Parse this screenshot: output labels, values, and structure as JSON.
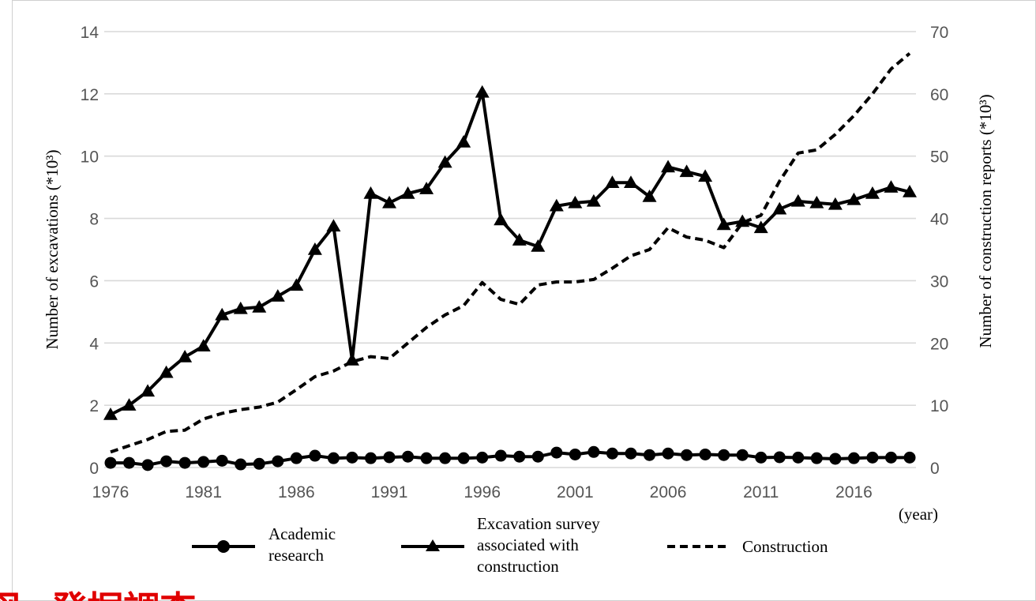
{
  "chart_data": {
    "type": "line",
    "x": [
      1976,
      1977,
      1978,
      1979,
      1980,
      1981,
      1982,
      1983,
      1984,
      1985,
      1986,
      1987,
      1988,
      1989,
      1990,
      1991,
      1992,
      1993,
      1994,
      1995,
      1996,
      1997,
      1998,
      1999,
      2000,
      2001,
      2002,
      2003,
      2004,
      2005,
      2006,
      2007,
      2008,
      2009,
      2010,
      2011,
      2012,
      2013,
      2014,
      2015,
      2016,
      2017,
      2018,
      2019
    ],
    "x_tick_labels": [
      "1976",
      "1981",
      "1986",
      "1991",
      "1996",
      "2001",
      "2006",
      "2011",
      "2016"
    ],
    "x_unit_label": "(year)",
    "ylabel_left": "Number of excavations (*10³)",
    "ylabel_right": "Number of construction reports (*10³)",
    "ylim_left": [
      0,
      14
    ],
    "ylim_right": [
      0,
      70
    ],
    "yticks_left": [
      "0",
      "2",
      "4",
      "6",
      "8",
      "10",
      "12",
      "14"
    ],
    "yticks_right": [
      "0",
      "10",
      "20",
      "30",
      "40",
      "50",
      "60",
      "70"
    ],
    "grid": true,
    "legend_position": "bottom",
    "series": [
      {
        "name": "Academic research",
        "axis": "left",
        "marker": "circle",
        "line_style": "solid",
        "values": [
          0.15,
          0.15,
          0.08,
          0.2,
          0.15,
          0.18,
          0.22,
          0.1,
          0.12,
          0.2,
          0.3,
          0.38,
          0.3,
          0.32,
          0.3,
          0.33,
          0.35,
          0.3,
          0.3,
          0.3,
          0.32,
          0.38,
          0.35,
          0.35,
          0.48,
          0.42,
          0.5,
          0.45,
          0.45,
          0.4,
          0.45,
          0.4,
          0.42,
          0.4,
          0.4,
          0.32,
          0.33,
          0.32,
          0.3,
          0.28,
          0.3,
          0.32,
          0.32,
          0.32
        ]
      },
      {
        "name": "Excavation survey associated with construction",
        "axis": "left",
        "marker": "triangle",
        "line_style": "solid",
        "values": [
          1.7,
          2.0,
          2.45,
          3.05,
          3.55,
          3.9,
          4.9,
          5.1,
          5.15,
          5.5,
          5.85,
          7.0,
          7.75,
          3.45,
          8.8,
          8.5,
          8.8,
          8.95,
          9.8,
          10.45,
          12.05,
          7.95,
          7.3,
          7.1,
          8.4,
          8.5,
          8.55,
          9.15,
          9.15,
          8.7,
          9.65,
          9.5,
          9.35,
          7.8,
          7.9,
          7.7,
          8.3,
          8.55,
          8.5,
          8.45,
          8.6,
          8.8,
          9.0,
          8.85
        ]
      },
      {
        "name": "Construction",
        "axis": "right",
        "marker": "none",
        "line_style": "dashed",
        "values": [
          2.5,
          3.5,
          4.5,
          5.8,
          6.0,
          7.8,
          8.7,
          9.3,
          9.7,
          10.5,
          12.5,
          14.6,
          15.5,
          17.0,
          17.8,
          17.5,
          20.0,
          22.5,
          24.5,
          26.0,
          29.7,
          27.0,
          26.2,
          29.3,
          29.8,
          29.8,
          30.2,
          32.0,
          34.0,
          35.0,
          38.5,
          37.0,
          36.5,
          35.3,
          39.3,
          40.5,
          46.0,
          50.5,
          51.0,
          53.5,
          56.5,
          60.0,
          64.0,
          66.5
        ]
      }
    ]
  },
  "legend": {
    "academic": [
      "Academic",
      "research"
    ],
    "excavation": [
      "Excavation survey",
      "associated with",
      "construction"
    ],
    "construction": [
      "Construction"
    ]
  },
  "overlay_text": "図 . 発掘調査"
}
